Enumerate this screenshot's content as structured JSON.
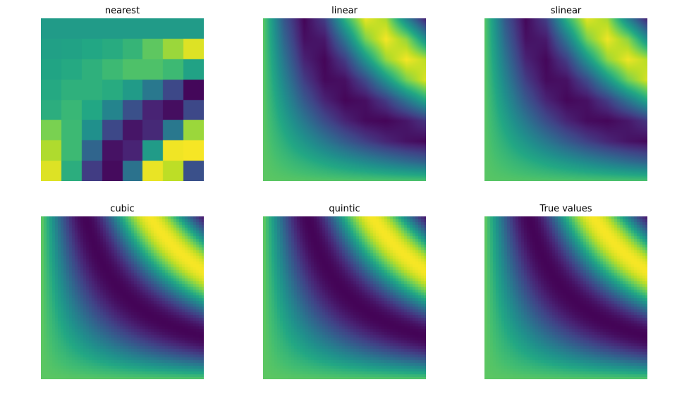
{
  "chart_data": [
    {
      "type": "heatmap",
      "title": "nearest",
      "method": "nearest",
      "colormap": "viridis",
      "grid": false,
      "axes": "off",
      "coarse_grid_z": [
        [
          0.55,
          0.55,
          0.55,
          0.55,
          0.55,
          0.55,
          0.55,
          0.55
        ],
        [
          0.57,
          0.58,
          0.6,
          0.62,
          0.66,
          0.75,
          0.85,
          0.95
        ],
        [
          0.59,
          0.61,
          0.64,
          0.68,
          0.72,
          0.72,
          0.68,
          0.58
        ],
        [
          0.61,
          0.64,
          0.64,
          0.62,
          0.55,
          0.4,
          0.22,
          0.02
        ],
        [
          0.63,
          0.67,
          0.6,
          0.45,
          0.25,
          0.1,
          0.04,
          0.22
        ],
        [
          0.8,
          0.68,
          0.5,
          0.22,
          0.06,
          0.12,
          0.4,
          0.85
        ],
        [
          0.88,
          0.68,
          0.33,
          0.05,
          0.1,
          0.55,
          0.98,
          0.99
        ],
        [
          0.95,
          0.63,
          0.18,
          0.03,
          0.38,
          0.97,
          0.9,
          0.25
        ]
      ]
    },
    {
      "type": "heatmap",
      "title": "linear",
      "method": "linear",
      "colormap": "viridis",
      "grid": false,
      "axes": "off"
    },
    {
      "type": "heatmap",
      "title": "slinear",
      "method": "slinear",
      "colormap": "viridis",
      "grid": false,
      "axes": "off"
    },
    {
      "type": "heatmap",
      "title": "cubic",
      "method": "cubic",
      "colormap": "viridis",
      "grid": false,
      "axes": "off"
    },
    {
      "type": "heatmap",
      "title": "quintic",
      "method": "quintic",
      "colormap": "viridis",
      "grid": false,
      "axes": "off"
    },
    {
      "type": "heatmap",
      "title": "True values",
      "method": "true",
      "colormap": "viridis",
      "grid": false,
      "axes": "off"
    }
  ]
}
